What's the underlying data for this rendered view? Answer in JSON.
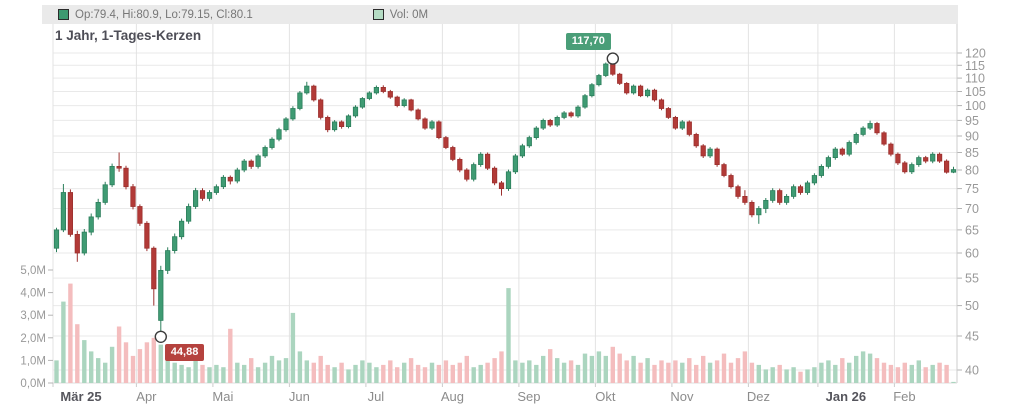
{
  "title": "1 Jahr, 1-Tages-Kerzen",
  "legend": {
    "ohlc_label": "Op:79.4, Hi:80.9, Lo:79.15, Cl:80.1",
    "vol_label": "Vol: 0M"
  },
  "annotations": {
    "high_label": "117,70",
    "low_label": "44,88"
  },
  "colors": {
    "candle_up": "#3f9b73",
    "candle_up_stroke": "#2c7f5c",
    "candle_down": "#b23a37",
    "candle_down_stroke": "#9c302e",
    "volume_up": "#abd5bf",
    "volume_down": "#f4bdbe",
    "badge_high": "#4a9e78",
    "badge_low": "#b5423e",
    "grid": "#e9e9e9",
    "axis_text": "#999999",
    "band_bg": "#eaeaea"
  },
  "chart_data": {
    "type": "candlestick",
    "title": "1 Jahr, 1-Tages-Kerzen",
    "timeframe": "1 year, daily candles",
    "price_scale": "logarithmic",
    "price_axis_side": "right",
    "price_ticks": [
      40,
      45,
      50,
      55,
      60,
      65,
      70,
      75,
      80,
      85,
      90,
      95,
      100,
      105,
      110,
      115,
      120
    ],
    "volume_axis_side": "left",
    "volume_ticks_m": [
      0,
      1,
      2,
      3,
      4,
      5
    ],
    "volume_tick_labels": [
      "0,0M",
      "1,0M",
      "2,0M",
      "3,0M",
      "4,0M",
      "5,0M"
    ],
    "months": [
      {
        "label": "Mär 25",
        "bold": true,
        "start_index": 0
      },
      {
        "label": "Apr",
        "bold": false,
        "start_index": 12
      },
      {
        "label": "Mai",
        "bold": false,
        "start_index": 23
      },
      {
        "label": "Jun",
        "bold": false,
        "start_index": 34
      },
      {
        "label": "Jul",
        "bold": false,
        "start_index": 45
      },
      {
        "label": "Aug",
        "bold": false,
        "start_index": 56
      },
      {
        "label": "Sep",
        "bold": false,
        "start_index": 67
      },
      {
        "label": "Okt",
        "bold": false,
        "start_index": 78
      },
      {
        "label": "Nov",
        "bold": false,
        "start_index": 89
      },
      {
        "label": "Dez",
        "bold": false,
        "start_index": 100
      },
      {
        "label": "Jan 26",
        "bold": true,
        "start_index": 110
      },
      {
        "label": "Feb",
        "bold": false,
        "start_index": 121
      }
    ],
    "high_marker": {
      "value": 117.7,
      "label": "117,70",
      "candle_index": 80
    },
    "low_marker": {
      "value": 44.88,
      "label": "44,88",
      "candle_index": 15
    },
    "last_candle": {
      "open": 79.4,
      "high": 80.9,
      "low": 79.15,
      "close": 80.1,
      "volume": "0M"
    },
    "candles_format": [
      "open",
      "high",
      "low",
      "close",
      "volume_millions"
    ],
    "candles": [
      [
        61,
        65.5,
        60.2,
        65,
        1.0
      ],
      [
        65,
        76.2,
        64.5,
        74,
        3.6
      ],
      [
        74,
        74.8,
        63.5,
        64,
        4.4
      ],
      [
        64,
        64.8,
        58.2,
        60,
        2.6
      ],
      [
        60,
        65.2,
        59.5,
        64.5,
        1.9
      ],
      [
        64.5,
        68.8,
        63.8,
        68,
        1.4
      ],
      [
        68,
        72.4,
        67.4,
        71.5,
        1.1
      ],
      [
        71.5,
        76.8,
        70.9,
        76,
        0.9
      ],
      [
        76,
        81.8,
        75.4,
        81,
        1.6
      ],
      [
        81,
        85,
        79.5,
        80.5,
        2.5
      ],
      [
        80.5,
        81.2,
        74.8,
        75.5,
        1.8
      ],
      [
        75.5,
        76.2,
        69.8,
        70.5,
        1.2
      ],
      [
        70.5,
        71,
        65.9,
        66.5,
        1.5
      ],
      [
        66.5,
        67,
        60.4,
        61,
        1.8
      ],
      [
        61,
        61.4,
        50,
        53,
        2.0
      ],
      [
        47.5,
        57.4,
        44.88,
        56.5,
        1.7
      ],
      [
        56.5,
        61.2,
        55.8,
        60.5,
        1.2
      ],
      [
        60.5,
        64.2,
        59.9,
        63.5,
        0.9
      ],
      [
        63.5,
        67.6,
        62.9,
        67,
        0.8
      ],
      [
        67,
        71.2,
        66.4,
        70.5,
        0.7
      ],
      [
        70.5,
        75.2,
        69.9,
        74.5,
        1.0
      ],
      [
        74.5,
        75.1,
        71.9,
        72.5,
        0.8
      ],
      [
        72.5,
        74.6,
        71.8,
        74,
        0.7
      ],
      [
        74,
        76.1,
        73.4,
        75.5,
        0.8
      ],
      [
        75.5,
        78.6,
        74.9,
        78,
        0.7
      ],
      [
        78,
        78.5,
        76.1,
        77,
        2.4
      ],
      [
        77,
        80.6,
        76.4,
        80,
        0.9
      ],
      [
        80,
        83.1,
        79.4,
        82.5,
        0.8
      ],
      [
        82.5,
        83,
        80.3,
        81,
        1.1
      ],
      [
        81,
        84.6,
        80.4,
        84,
        0.7
      ],
      [
        84,
        87.1,
        83.4,
        86.5,
        0.9
      ],
      [
        86.5,
        89.6,
        85.9,
        89,
        1.2
      ],
      [
        89,
        92.6,
        88.4,
        92,
        1.0
      ],
      [
        92,
        96.1,
        91.4,
        95.5,
        1.1
      ],
      [
        95.5,
        99.8,
        94.9,
        99,
        3.1
      ],
      [
        99,
        105.2,
        98.4,
        104.5,
        1.4
      ],
      [
        104.5,
        108.6,
        103.9,
        107,
        1.0
      ],
      [
        107,
        107.5,
        101.4,
        102,
        0.9
      ],
      [
        102,
        102.5,
        95.3,
        96,
        1.2
      ],
      [
        96,
        96.6,
        91.2,
        92,
        0.8
      ],
      [
        92,
        95.1,
        91.4,
        94.5,
        0.7
      ],
      [
        94.5,
        95,
        92.3,
        93,
        0.9
      ],
      [
        93,
        97,
        92.4,
        96.5,
        0.6
      ],
      [
        96.5,
        100.1,
        95.9,
        99.5,
        0.8
      ],
      [
        99.5,
        103,
        98.9,
        102.5,
        1.0
      ],
      [
        102.5,
        105.1,
        101.9,
        104.5,
        0.9
      ],
      [
        104.5,
        107.2,
        103.9,
        106.5,
        0.7
      ],
      [
        106.5,
        107.3,
        104.4,
        105,
        0.8
      ],
      [
        105,
        105.6,
        102.4,
        103,
        1.0
      ],
      [
        103,
        103.5,
        99.4,
        100,
        0.7
      ],
      [
        100,
        102.6,
        99.4,
        102,
        0.9
      ],
      [
        102,
        102.4,
        98,
        98.5,
        1.1
      ],
      [
        98.5,
        99,
        95,
        95.5,
        0.8
      ],
      [
        95.5,
        96,
        92,
        92.5,
        0.7
      ],
      [
        92.5,
        95.1,
        91.9,
        94.5,
        0.9
      ],
      [
        94.5,
        95,
        89,
        89.5,
        0.8
      ],
      [
        89.5,
        90,
        86,
        86.5,
        1.0
      ],
      [
        86.5,
        87,
        82.5,
        83,
        0.8
      ],
      [
        83,
        83.5,
        79.4,
        80,
        0.9
      ],
      [
        80,
        80.5,
        76.9,
        77.5,
        1.2
      ],
      [
        77.5,
        82.1,
        76.9,
        81.5,
        0.7
      ],
      [
        81.5,
        85.1,
        80.9,
        84.5,
        0.8
      ],
      [
        84.5,
        85,
        80,
        80.5,
        0.9
      ],
      [
        80.5,
        81,
        75.9,
        76.5,
        1.1
      ],
      [
        76.5,
        77,
        73.2,
        75,
        1.4
      ],
      [
        75,
        80.1,
        74.4,
        79.5,
        4.2
      ],
      [
        79.5,
        84.6,
        78.9,
        84,
        1.0
      ],
      [
        84,
        87.6,
        83.4,
        87,
        0.9
      ],
      [
        87,
        90.1,
        86.4,
        89.5,
        1.0
      ],
      [
        89.5,
        93.1,
        88.9,
        92.5,
        0.8
      ],
      [
        92.5,
        95.6,
        91.9,
        95,
        1.2
      ],
      [
        95,
        95.5,
        92.9,
        93.5,
        1.5
      ],
      [
        93.5,
        96.6,
        92.9,
        96,
        1.1
      ],
      [
        96,
        98.1,
        95.4,
        97.5,
        0.9
      ],
      [
        97.5,
        98,
        95.9,
        96.5,
        1.0
      ],
      [
        96.5,
        100.1,
        95.9,
        99.5,
        0.8
      ],
      [
        99.5,
        104.1,
        98.9,
        103.5,
        1.3
      ],
      [
        103.5,
        108.1,
        102.9,
        107.5,
        1.2
      ],
      [
        107.5,
        111.6,
        106.9,
        111,
        1.4
      ],
      [
        111,
        116.1,
        110.4,
        115.5,
        1.2
      ],
      [
        115.5,
        117.7,
        110.9,
        111.5,
        1.6
      ],
      [
        111.5,
        112,
        107.4,
        108,
        1.3
      ],
      [
        108,
        108.5,
        103.9,
        104.5,
        1.0
      ],
      [
        104.5,
        107.6,
        103.9,
        107,
        1.2
      ],
      [
        107,
        107.5,
        103,
        103.5,
        0.9
      ],
      [
        103.5,
        106.1,
        102.9,
        105.5,
        1.1
      ],
      [
        105.5,
        106,
        101.4,
        102,
        0.8
      ],
      [
        102,
        102.5,
        98.4,
        99,
        1.0
      ],
      [
        99,
        99.5,
        95.5,
        96,
        0.9
      ],
      [
        96,
        96.5,
        92,
        92.5,
        1.0
      ],
      [
        92.5,
        95.1,
        91.9,
        94.5,
        0.9
      ],
      [
        94.5,
        95,
        89.9,
        90.5,
        1.1
      ],
      [
        90.5,
        91,
        86.4,
        87,
        0.8
      ],
      [
        87,
        87.5,
        83.4,
        84,
        1.2
      ],
      [
        84,
        86.6,
        83.4,
        86,
        0.9
      ],
      [
        86,
        86.5,
        80.9,
        81.5,
        1.0
      ],
      [
        81.5,
        82,
        78,
        78.5,
        1.3
      ],
      [
        78.5,
        79,
        75,
        75.5,
        0.9
      ],
      [
        75.5,
        76,
        72.4,
        73,
        1.1
      ],
      [
        73,
        74.6,
        70.9,
        71.5,
        1.4
      ],
      [
        71.5,
        72,
        67.9,
        68.5,
        0.9
      ],
      [
        68.5,
        70.6,
        66.4,
        70,
        0.8
      ],
      [
        70,
        72.6,
        68.9,
        72,
        0.6
      ],
      [
        72,
        75.1,
        71.4,
        74.5,
        0.7
      ],
      [
        74.5,
        75,
        70.9,
        71.5,
        0.8
      ],
      [
        71.5,
        73.6,
        70.9,
        73,
        0.6
      ],
      [
        73,
        76.1,
        72.4,
        75.5,
        0.7
      ],
      [
        75.5,
        76,
        73.4,
        74,
        0.5
      ],
      [
        74,
        77.1,
        73.4,
        76.5,
        0.6
      ],
      [
        76.5,
        79.1,
        75.9,
        78.5,
        0.7
      ],
      [
        78.5,
        81.6,
        77.9,
        81,
        0.9
      ],
      [
        81,
        84.1,
        80.4,
        83.5,
        1.0
      ],
      [
        83.5,
        86.6,
        82.9,
        86,
        0.8
      ],
      [
        86,
        86.5,
        84,
        84.5,
        1.1
      ],
      [
        84.5,
        88.6,
        83.9,
        88,
        0.9
      ],
      [
        88,
        91.1,
        87.4,
        90.5,
        1.2
      ],
      [
        90.5,
        93.1,
        89.9,
        92.5,
        1.4
      ],
      [
        92.5,
        94.9,
        91.9,
        94,
        1.3
      ],
      [
        94,
        94.5,
        90.4,
        91,
        1.1
      ],
      [
        91,
        91.5,
        87,
        87.5,
        0.9
      ],
      [
        87.5,
        88,
        83.9,
        84.5,
        0.8
      ],
      [
        84.5,
        85,
        81.4,
        82,
        0.7
      ],
      [
        82,
        82.5,
        79,
        79.5,
        0.9
      ],
      [
        79.5,
        82.1,
        78.9,
        81.5,
        0.8
      ],
      [
        81.5,
        84.1,
        80.9,
        83.5,
        1.0
      ],
      [
        83.5,
        84,
        81.9,
        82.5,
        0.7
      ],
      [
        82.5,
        85.1,
        81.9,
        84.5,
        0.8
      ],
      [
        84.5,
        85,
        82,
        82.5,
        0.9
      ],
      [
        82.5,
        83,
        79,
        79.4,
        0.8
      ],
      [
        79.4,
        80.9,
        79.15,
        80.1,
        0.05
      ]
    ]
  }
}
